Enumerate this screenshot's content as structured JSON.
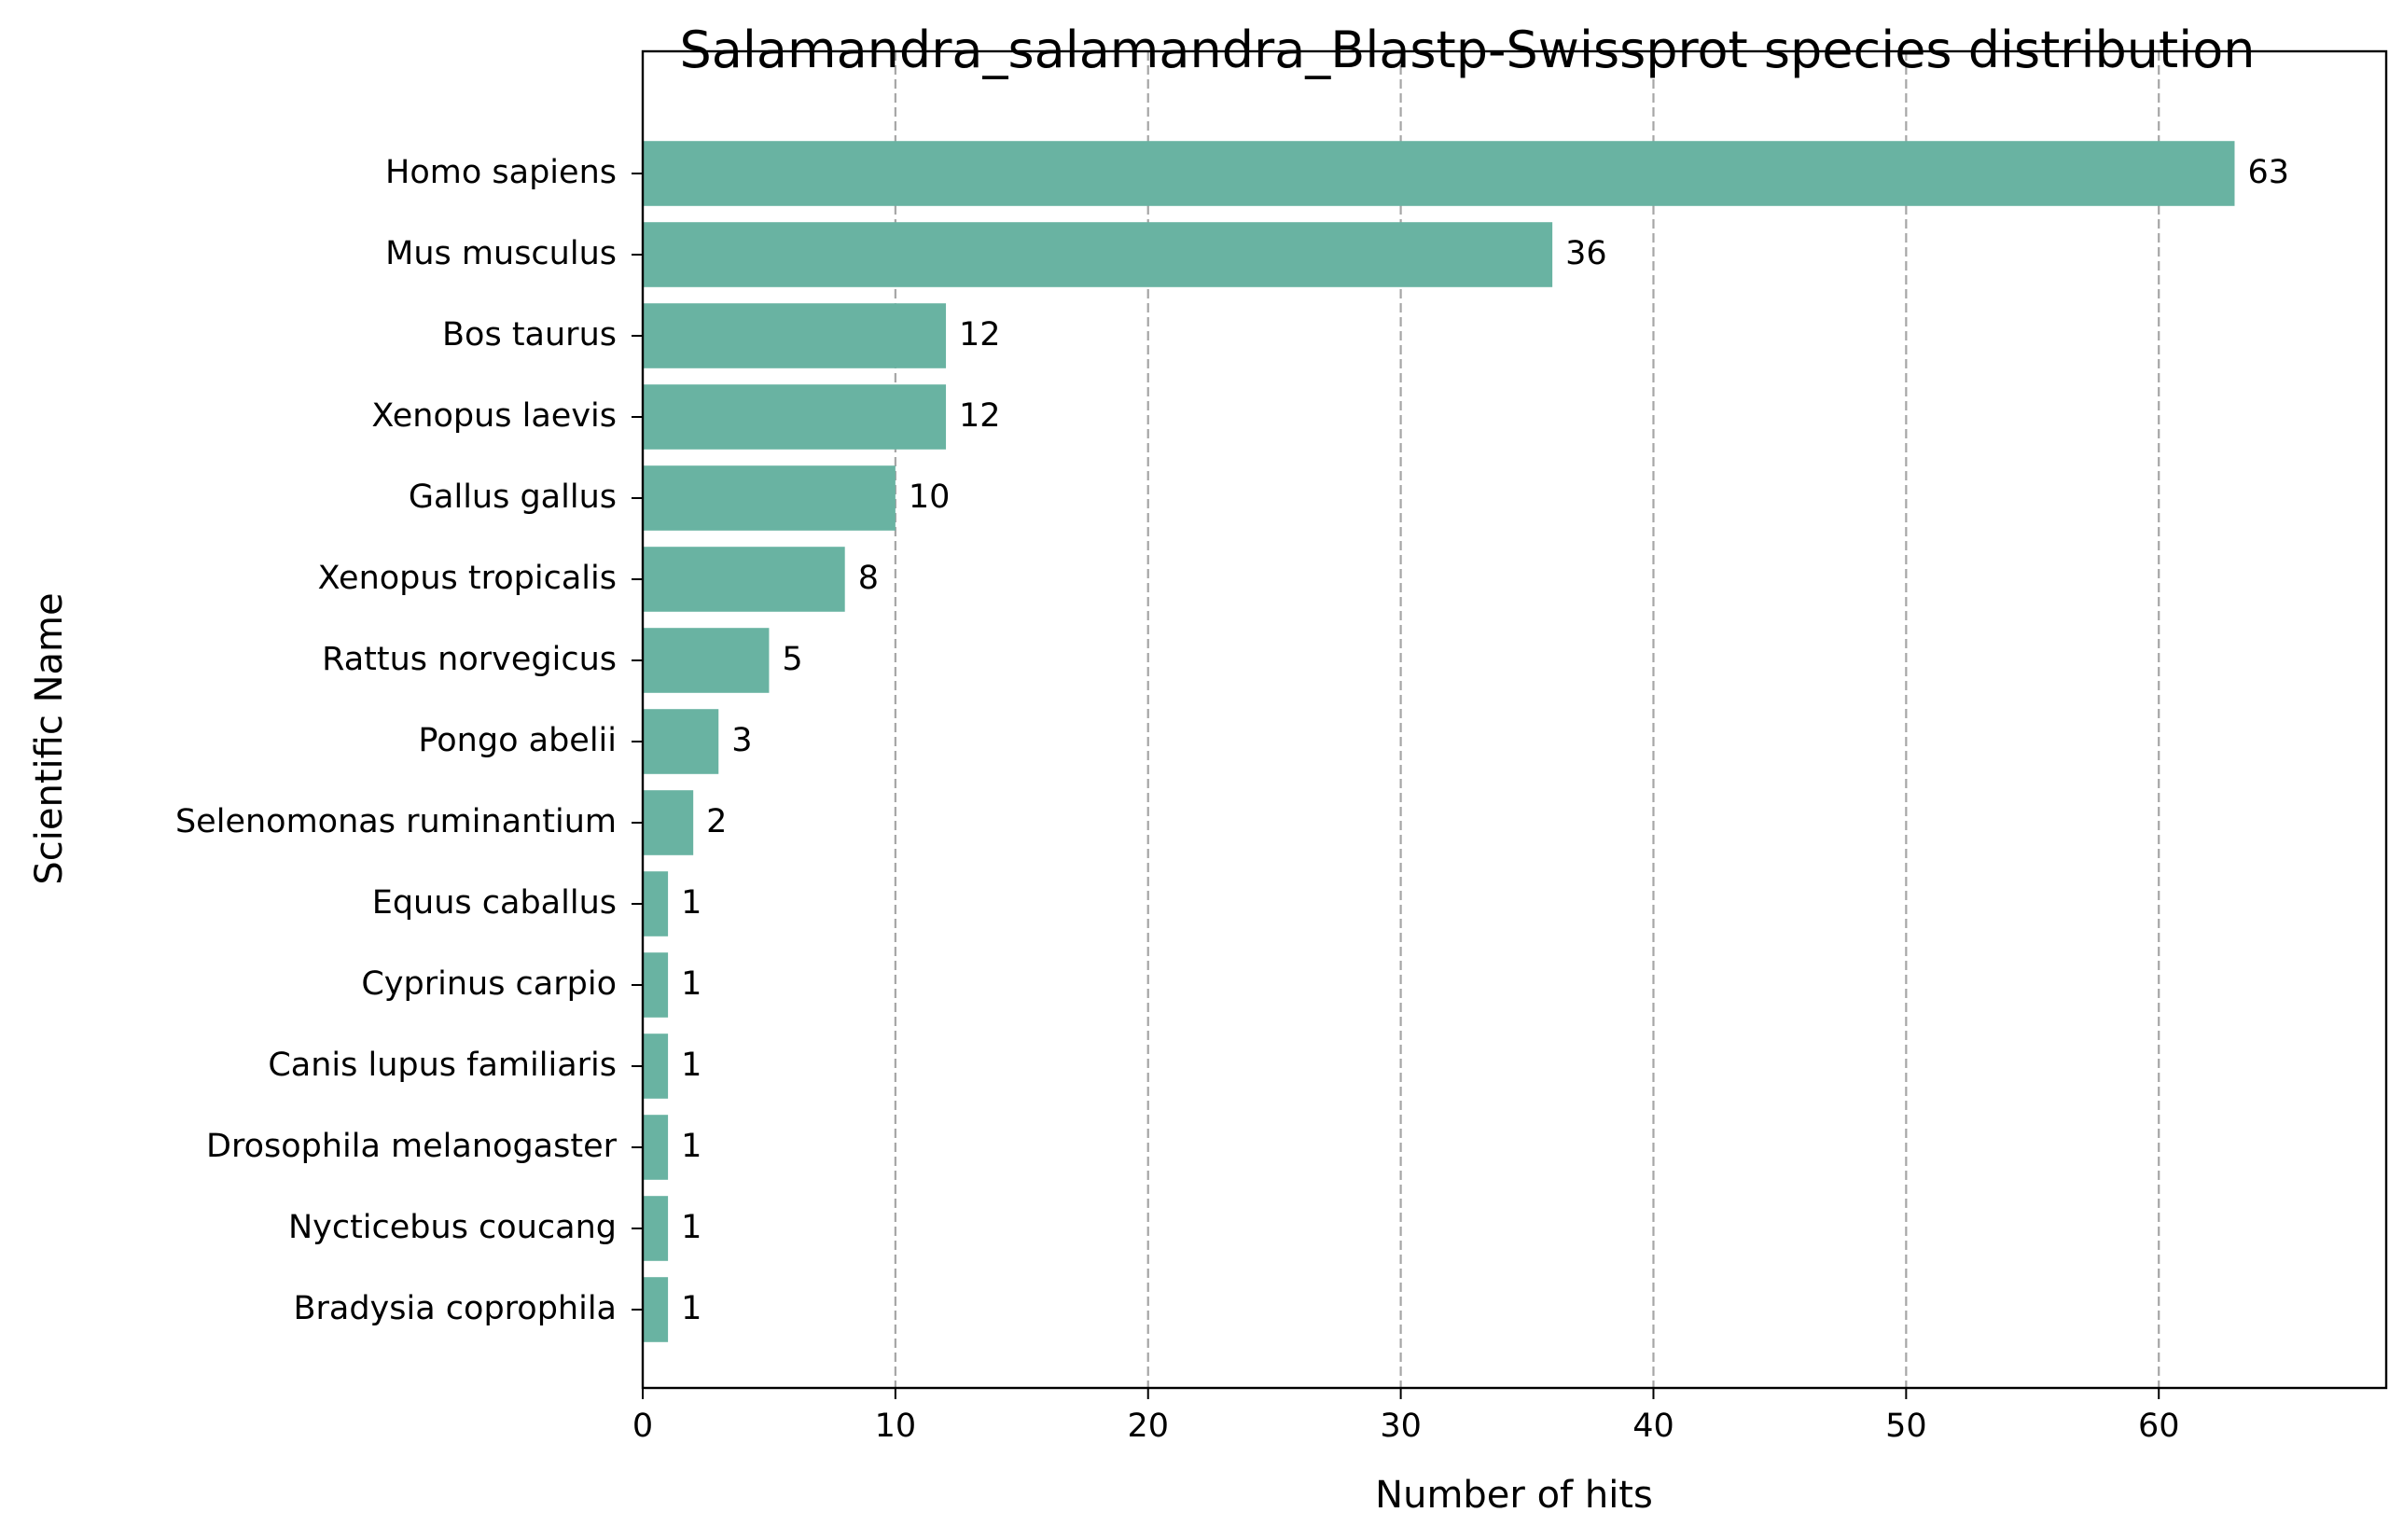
{
  "chart_data": {
    "type": "bar",
    "orientation": "horizontal",
    "title": "Salamandra_salamandra_Blastp-Swissprot species distribution",
    "xlabel": "Number of hits",
    "ylabel": "Scientific Name",
    "xlim": [
      0,
      69
    ],
    "xticks": [
      0,
      10,
      20,
      30,
      40,
      50,
      60
    ],
    "grid": "x-dashed",
    "bar_color": "#69b3a2",
    "grid_color": "#a6a6a6",
    "categories": [
      "Homo sapiens",
      "Mus musculus",
      "Bos taurus",
      "Xenopus laevis",
      "Gallus gallus",
      "Xenopus tropicalis",
      "Rattus norvegicus",
      "Pongo abelii",
      "Selenomonas ruminantium",
      "Equus caballus",
      "Cyprinus carpio",
      "Canis lupus familiaris",
      "Drosophila melanogaster",
      "Nycticebus coucang",
      "Bradysia coprophila"
    ],
    "values": [
      63,
      36,
      12,
      12,
      10,
      8,
      5,
      3,
      2,
      1,
      1,
      1,
      1,
      1,
      1
    ]
  }
}
